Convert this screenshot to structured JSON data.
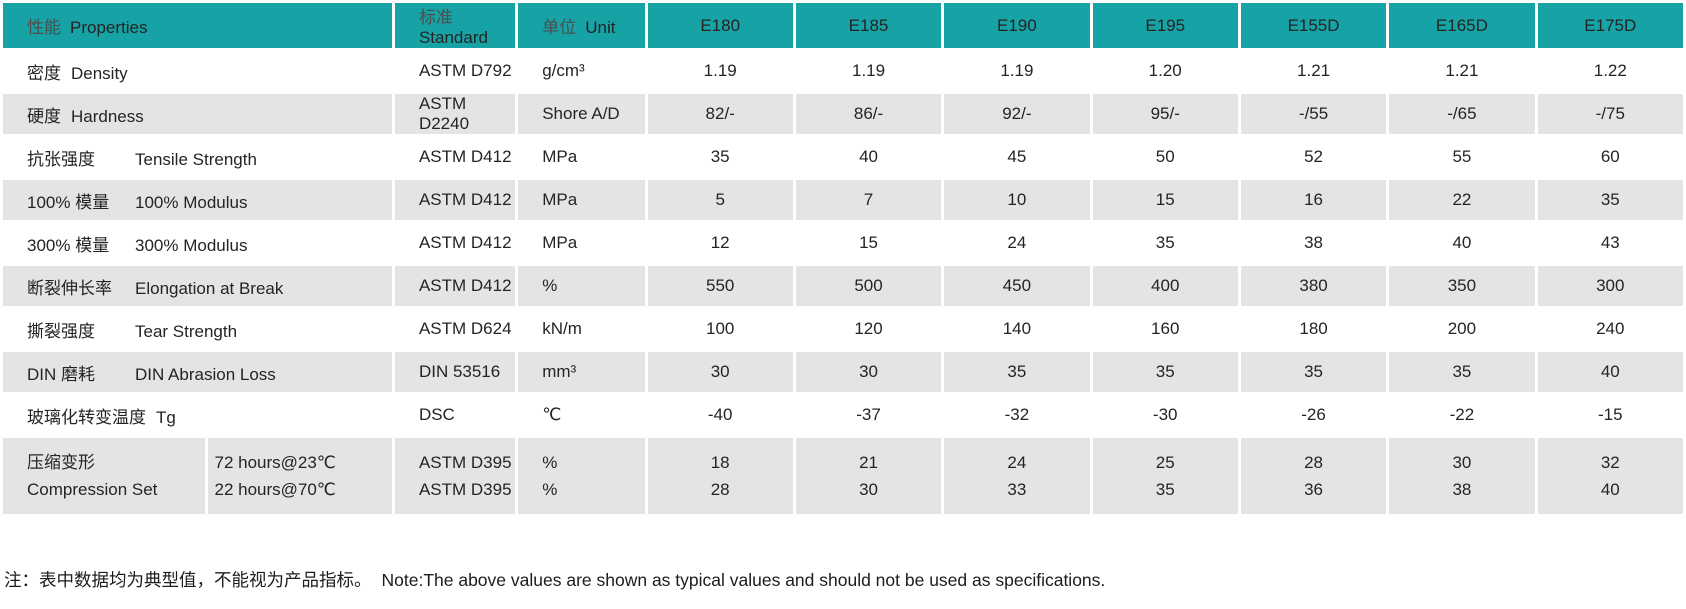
{
  "colors": {
    "accent": "#17A2A5",
    "alt_row": "#E4E4E4"
  },
  "header": {
    "properties": {
      "zh": "性能",
      "en": "Properties"
    },
    "standard": {
      "zh": "标准",
      "en": "Standard"
    },
    "unit": {
      "zh": "单位",
      "en": "Unit"
    },
    "grades": [
      "E180",
      "E185",
      "E190",
      "E195",
      "E155D",
      "E165D",
      "E175D"
    ]
  },
  "rows": [
    {
      "zh": "密度",
      "en": "Density",
      "standard": "ASTM D792",
      "unit": "g/cm³",
      "values": [
        "1.19",
        "1.19",
        "1.19",
        "1.20",
        "1.21",
        "1.21",
        "1.22"
      ]
    },
    {
      "zh": "硬度",
      "en": "Hardness",
      "standard": "ASTM D2240",
      "unit": "Shore A/D",
      "values": [
        "82/-",
        "86/-",
        "92/-",
        "95/-",
        "-/55",
        "-/65",
        "-/75"
      ]
    },
    {
      "zh": "抗张强度",
      "en": "Tensile Strength",
      "standard": "ASTM D412",
      "unit": "MPa",
      "values": [
        "35",
        "40",
        "45",
        "50",
        "52",
        "55",
        "60"
      ],
      "tab": true
    },
    {
      "zh": "100% 模量",
      "en": "100% Modulus",
      "standard": "ASTM D412",
      "unit": "MPa",
      "values": [
        "5",
        "7",
        "10",
        "15",
        "16",
        "22",
        "35"
      ],
      "tab": true
    },
    {
      "zh": "300% 模量",
      "en": "300% Modulus",
      "standard": "ASTM D412",
      "unit": "MPa",
      "values": [
        "12",
        "15",
        "24",
        "35",
        "38",
        "40",
        "43"
      ],
      "tab": true
    },
    {
      "zh": "断裂伸长率",
      "en": "Elongation at Break",
      "standard": "ASTM D412",
      "unit": "%",
      "values": [
        "550",
        "500",
        "450",
        "400",
        "380",
        "350",
        "300"
      ],
      "tab": true
    },
    {
      "zh": "撕裂强度",
      "en": "Tear Strength",
      "standard": "ASTM D624",
      "unit": "kN/m",
      "values": [
        "100",
        "120",
        "140",
        "160",
        "180",
        "200",
        "240"
      ],
      "tab": true
    },
    {
      "zh": "DIN 磨耗",
      "en": "DIN Abrasion Loss",
      "standard": "DIN 53516",
      "unit": "mm³",
      "values": [
        "30",
        "30",
        "35",
        "35",
        "35",
        "35",
        "40"
      ],
      "tab": true
    },
    {
      "zh": "玻璃化转变温度",
      "en": "Tg",
      "standard": "DSC",
      "unit": "℃",
      "values": [
        "-40",
        "-37",
        "-32",
        "-30",
        "-26",
        "-22",
        "-15"
      ]
    }
  ],
  "compression_row": {
    "zh": "压缩变形",
    "en": "Compression Set",
    "conditions": [
      "72 hours@23℃",
      "22 hours@70℃"
    ],
    "standards": [
      "ASTM D395",
      "ASTM D395"
    ],
    "units": [
      "%",
      "%"
    ],
    "values": [
      [
        "18",
        "28"
      ],
      [
        "21",
        "30"
      ],
      [
        "24",
        "33"
      ],
      [
        "25",
        "35"
      ],
      [
        "28",
        "36"
      ],
      [
        "30",
        "38"
      ],
      [
        "32",
        "40"
      ]
    ]
  },
  "note": {
    "zh": "注：表中数据均为典型值，不能视为产品指标。",
    "en": "Note:The above values are shown as typical values and should not be used as specifications."
  }
}
